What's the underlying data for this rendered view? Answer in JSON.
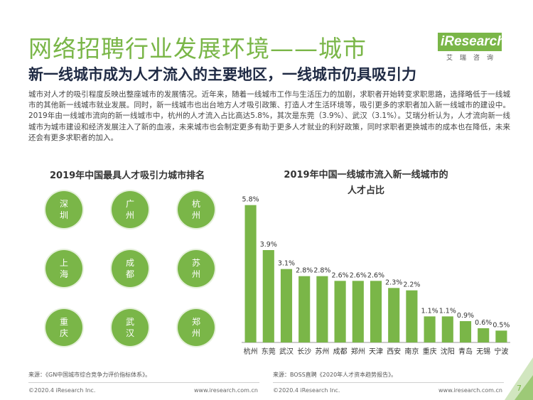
{
  "header": {
    "title": "网络招聘行业发展环境——城市",
    "subtitle": "新一线城市成为人才流入的主要地区，一线城市仍具吸引力",
    "logo_main": "iResearch",
    "logo_sub": "艾瑞咨询",
    "accent_color": "#7ab648"
  },
  "body_text": "城市对人才的吸引程度反映出整座城市的发展情况。近年来，随着一线城市工作与生活压力的加剧，求职者开始转变求职思路，选择略低于一线城市的其他新一线城市就业发展。同时，新一线城市也出台地方人才吸引政策、打造人才生活环境等，吸引更多的求职者加入新一线城市的建设中。2019年由一线城市流向的新一线城市中，杭州的人才流入占比高达5.8%，其次是东莞（3.9%）、武汉（3.1%）。艾瑞分析认为，人才流向新一线城市为城市建设和经济发展注入了新的血液，未来城市也会制定更多有助于更多人才就业的利好政策，同时求职者更换城市的成本也在降低，未来还会有更多求职者的加入。",
  "ranking": {
    "title": "2019年中国最具人才吸引力城市排名",
    "cities": [
      [
        "深",
        "圳"
      ],
      [
        "广",
        "州"
      ],
      [
        "杭",
        "州"
      ],
      [
        "上",
        "海"
      ],
      [
        "成",
        "都"
      ],
      [
        "苏",
        "州"
      ],
      [
        "重",
        "庆"
      ],
      [
        "武",
        "汉"
      ],
      [
        "郑",
        "州"
      ]
    ]
  },
  "chart_data": {
    "type": "bar",
    "title": "2019年中国一线城市流入新一线城市的人才占比",
    "title_lines": [
      "2019年中国一线城市流入新一线城市的",
      "人才占比"
    ],
    "categories": [
      "杭州",
      "东莞",
      "武汉",
      "长沙",
      "苏州",
      "成都",
      "郑州",
      "天津",
      "西安",
      "南京",
      "重庆",
      "沈阳",
      "青岛",
      "无锡",
      "宁波"
    ],
    "values": [
      5.8,
      3.9,
      3.1,
      2.8,
      2.8,
      2.6,
      2.6,
      2.6,
      2.3,
      2.2,
      1.1,
      1.1,
      0.9,
      0.6,
      0.5
    ],
    "value_labels": [
      "5.8%",
      "3.9%",
      "3.1%",
      "2.8%",
      "2.8%",
      "2.6%",
      "2.6%",
      "2.6%",
      "2.3%",
      "2.2%",
      "1.1%",
      "1.1%",
      "0.9%",
      "0.6%",
      "0.5%"
    ],
    "ylim": [
      0,
      6.3
    ],
    "bar_color": "#7ab648",
    "grid": false
  },
  "footer": {
    "source_left": "来源：《GN中国城市综合竞争力评价指标体系》。",
    "source_right": "来源：BOSS直聘《2020年人才资本趋势报告》。",
    "copyright_left": "©2020.4 iResearch Inc.",
    "url_left": "www.iresearch.com.cn",
    "copyright_right": "©2020.4 iResearch Inc.",
    "url_right": "www.iresearch.com.cn",
    "page_number": "7"
  }
}
